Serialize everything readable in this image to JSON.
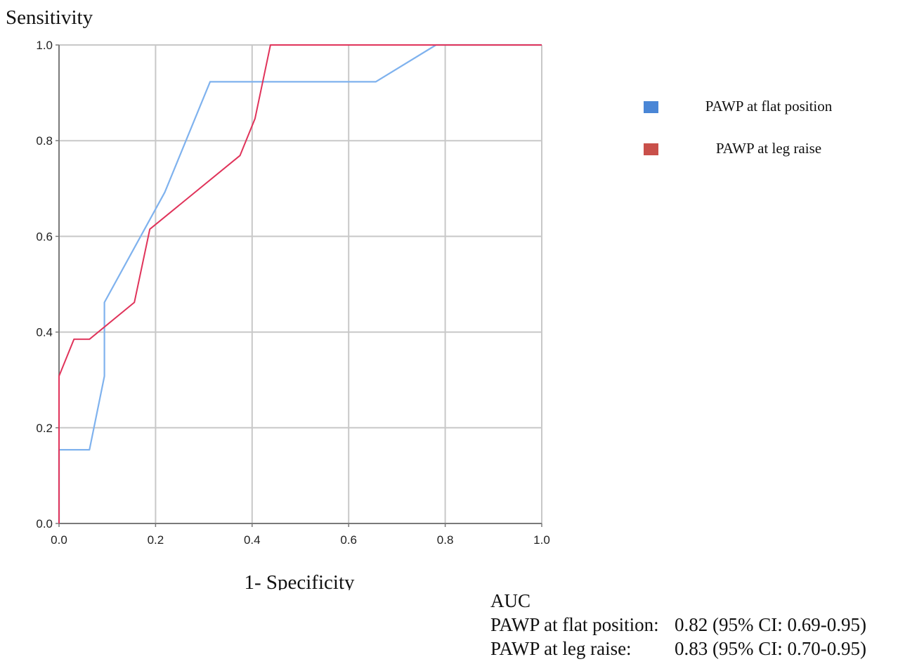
{
  "chart_data": {
    "type": "line",
    "ylabel": "Sensitivity",
    "xlabel": "1- Specificity",
    "xlim": [
      0,
      1
    ],
    "ylim": [
      0,
      1
    ],
    "x_ticks": [
      "0.0",
      "0.2",
      "0.4",
      "0.6",
      "0.8",
      "1.0"
    ],
    "y_ticks": [
      "0.0",
      "0.2",
      "0.4",
      "0.6",
      "0.8",
      "1.0"
    ],
    "grid": true,
    "legend_position": "right",
    "series": [
      {
        "name": "PAWP at flat position",
        "color": "#7fb2ee",
        "legend_color": "#4a86d6",
        "points": [
          [
            0,
            0
          ],
          [
            0,
            0.154
          ],
          [
            0.063,
            0.154
          ],
          [
            0.094,
            0.308
          ],
          [
            0.094,
            0.462
          ],
          [
            0.219,
            0.692
          ],
          [
            0.313,
            0.923
          ],
          [
            0.656,
            0.923
          ],
          [
            0.781,
            1.0
          ],
          [
            1.0,
            1.0
          ]
        ]
      },
      {
        "name": "PAWP at leg raise",
        "color": "#e0335a",
        "legend_color": "#c9504a",
        "points": [
          [
            0,
            0
          ],
          [
            0,
            0.308
          ],
          [
            0.031,
            0.385
          ],
          [
            0.063,
            0.385
          ],
          [
            0.156,
            0.462
          ],
          [
            0.188,
            0.615
          ],
          [
            0.375,
            0.769
          ],
          [
            0.406,
            0.846
          ],
          [
            0.438,
            1.0
          ],
          [
            1.0,
            1.0
          ]
        ]
      }
    ]
  },
  "auc": {
    "title": "AUC",
    "rows": [
      {
        "name": "PAWP at flat position:",
        "value": "0.82 (95% CI: 0.69-0.95)"
      },
      {
        "name": "PAWP at leg raise:",
        "value": "0.83 (95% CI:  0.70-0.95)"
      }
    ]
  }
}
